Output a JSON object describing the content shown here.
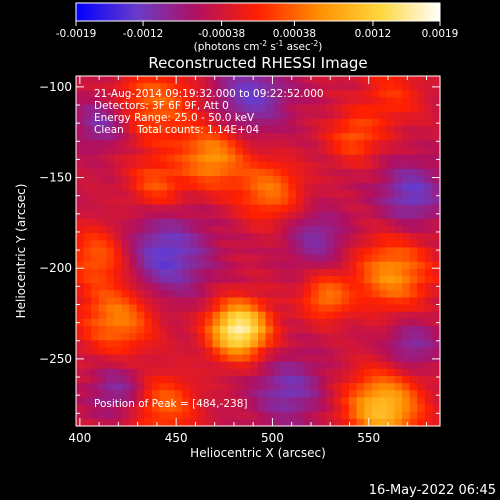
{
  "chart_data": {
    "type": "heatmap",
    "title": "Reconstructed RHESSI Image",
    "xlabel": "Heliocentric X (arcsec)",
    "ylabel": "Heliocentric Y (arcsec)",
    "xlim": [
      398,
      587
    ],
    "ylim": [
      -287,
      -94
    ],
    "x_ticks": [
      400,
      450,
      500,
      550
    ],
    "y_ticks": [
      -100,
      -150,
      -200,
      -250
    ],
    "colorbar": {
      "range": [
        -0.0019,
        0.0019
      ],
      "tick_labels": [
        "-0.0019",
        "-0.0012",
        "-0.00038",
        "0.00038",
        "0.0012",
        "0.0019"
      ],
      "tick_values": [
        -0.0019,
        -0.0012,
        -0.00038,
        0.00038,
        0.0012,
        0.0019
      ],
      "unit_label": "(photons cm",
      "unit_exp1": "-2",
      "unit_mid": " s",
      "unit_exp2": "-1",
      "unit_mid2": " asec",
      "unit_exp3": "-2",
      "unit_end": ")"
    },
    "colormap": [
      "#0000ff",
      "#6a3cc8",
      "#b01060",
      "#ff2000",
      "#ff9000",
      "#ffd840",
      "#ffffff"
    ],
    "peak": [
      484,
      -238
    ],
    "sources": [
      {
        "x": 484,
        "y": -236,
        "sigma": 11,
        "amp": 0.0021
      },
      {
        "x": 530,
        "y": -218,
        "sigma": 9,
        "amp": 0.0009
      },
      {
        "x": 565,
        "y": -205,
        "sigma": 14,
        "amp": 0.0011
      },
      {
        "x": 420,
        "y": -230,
        "sigma": 14,
        "amp": 0.001
      },
      {
        "x": 470,
        "y": -140,
        "sigma": 12,
        "amp": 0.0011
      },
      {
        "x": 500,
        "y": -158,
        "sigma": 12,
        "amp": 0.0009
      },
      {
        "x": 440,
        "y": -110,
        "sigma": 16,
        "amp": 0.0008
      },
      {
        "x": 545,
        "y": -128,
        "sigma": 10,
        "amp": 0.0007
      },
      {
        "x": 440,
        "y": -155,
        "sigma": 10,
        "amp": 0.0007
      },
      {
        "x": 410,
        "y": -195,
        "sigma": 12,
        "amp": 0.0008
      },
      {
        "x": 560,
        "y": -280,
        "sigma": 14,
        "amp": 0.0015
      },
      {
        "x": 445,
        "y": -278,
        "sigma": 12,
        "amp": 0.0008
      },
      {
        "x": 565,
        "y": -105,
        "sigma": 12,
        "amp": 0.0005
      }
    ],
    "sinks": [
      {
        "x": 445,
        "y": -195,
        "sigma": 16,
        "amp": 0.0009
      },
      {
        "x": 490,
        "y": -105,
        "sigma": 14,
        "amp": 0.0008
      },
      {
        "x": 412,
        "y": -120,
        "sigma": 10,
        "amp": 0.0007
      },
      {
        "x": 575,
        "y": -160,
        "sigma": 12,
        "amp": 0.0008
      },
      {
        "x": 525,
        "y": -185,
        "sigma": 11,
        "amp": 0.0006
      },
      {
        "x": 420,
        "y": -270,
        "sigma": 10,
        "amp": 0.0006
      },
      {
        "x": 510,
        "y": -270,
        "sigma": 13,
        "amp": 0.0007
      },
      {
        "x": 575,
        "y": -245,
        "sigma": 10,
        "amp": 0.0006
      }
    ],
    "annotations": {
      "line1": "21-Aug-2014 09:19:32.000 to 09:22:52.000",
      "line2": "Detectors: 3F 6F 9F, Att 0",
      "line3": "Energy Range: 25.0 - 50.0 keV",
      "line4": "Clean    Total counts: 1.14E+04",
      "peak_label": "Position of Peak = [484,-238]"
    }
  },
  "footer": {
    "date": "16-May-2022 06:45"
  }
}
